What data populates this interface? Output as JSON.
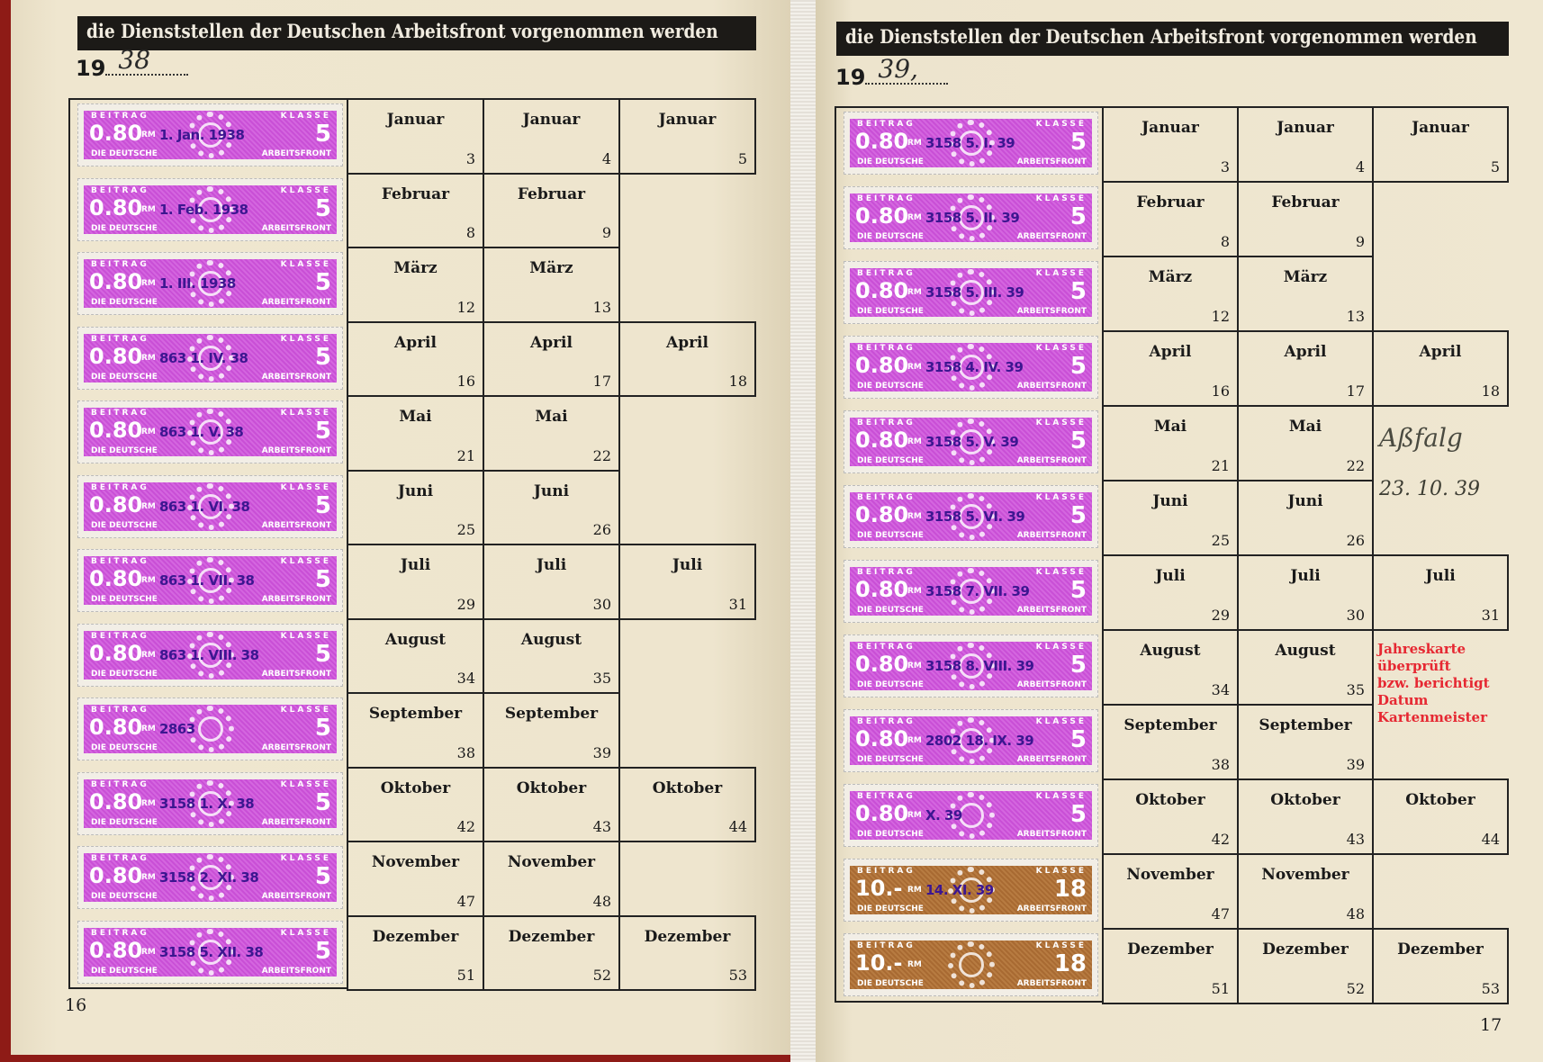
{
  "left_page": {
    "header": "die Dienststellen der Deutschen Arbeitsfront vorgenommen werden",
    "year_prefix": "19",
    "year_handwritten": "38",
    "page_number": "16",
    "stamps": [
      {
        "value": "0.80",
        "klasse": "5",
        "cancel": "1. Jan. 1938",
        "color": "magenta"
      },
      {
        "value": "0.80",
        "klasse": "5",
        "cancel": "1. Feb. 1938",
        "color": "magenta"
      },
      {
        "value": "0.80",
        "klasse": "5",
        "cancel": "1. III. 1938",
        "color": "magenta"
      },
      {
        "value": "0.80",
        "klasse": "5",
        "cancel": "863 1. IV. 38",
        "color": "magenta"
      },
      {
        "value": "0.80",
        "klasse": "5",
        "cancel": "863 1. V. 38",
        "color": "magenta"
      },
      {
        "value": "0.80",
        "klasse": "5",
        "cancel": "863 1. VI. 38",
        "color": "magenta"
      },
      {
        "value": "0.80",
        "klasse": "5",
        "cancel": "863 1. VII. 38",
        "color": "magenta"
      },
      {
        "value": "0.80",
        "klasse": "5",
        "cancel": "863 1. VIII. 38",
        "color": "magenta"
      },
      {
        "value": "0.80",
        "klasse": "5",
        "cancel": "2863",
        "color": "magenta"
      },
      {
        "value": "0.80",
        "klasse": "5",
        "cancel": "3158 1. X. 38",
        "color": "magenta"
      },
      {
        "value": "0.80",
        "klasse": "5",
        "cancel": "3158 2. XI. 38",
        "color": "magenta"
      },
      {
        "value": "0.80",
        "klasse": "5",
        "cancel": "3158 5. XII. 38",
        "color": "magenta"
      }
    ]
  },
  "right_page": {
    "header": "die Dienststellen der Deutschen Arbeitsfront vorgenommen werden",
    "year_prefix": "19",
    "year_handwritten": "39,",
    "page_number": "17",
    "stamps": [
      {
        "value": "0.80",
        "klasse": "5",
        "cancel": "3158 5. I. 39",
        "color": "magenta"
      },
      {
        "value": "0.80",
        "klasse": "5",
        "cancel": "3158 5. II. 39",
        "color": "magenta"
      },
      {
        "value": "0.80",
        "klasse": "5",
        "cancel": "3158 5. III. 39",
        "color": "magenta"
      },
      {
        "value": "0.80",
        "klasse": "5",
        "cancel": "3158 4. IV. 39",
        "color": "magenta"
      },
      {
        "value": "0.80",
        "klasse": "5",
        "cancel": "3158 5. V. 39",
        "color": "magenta"
      },
      {
        "value": "0.80",
        "klasse": "5",
        "cancel": "3158 5. VI. 39",
        "color": "magenta"
      },
      {
        "value": "0.80",
        "klasse": "5",
        "cancel": "3158 7. VII. 39",
        "color": "magenta"
      },
      {
        "value": "0.80",
        "klasse": "5",
        "cancel": "3158 8. VIII. 39",
        "color": "magenta"
      },
      {
        "value": "0.80",
        "klasse": "5",
        "cancel": "2802 18. IX. 39",
        "color": "magenta"
      },
      {
        "value": "0.80",
        "klasse": "5",
        "cancel": "X. 39",
        "color": "magenta"
      },
      {
        "value": "10.-",
        "klasse": "18",
        "cancel": "14. XI. 39",
        "color": "brown"
      },
      {
        "value": "10.-",
        "klasse": "18",
        "cancel": "",
        "color": "brown"
      }
    ],
    "red_stamp": [
      "Jahreskarte überprüft",
      "bzw. berichtigt",
      "Datum",
      "Kartenmeister"
    ],
    "signature": "Aßfalg",
    "handwritten_date": "23. 10. 39"
  },
  "stamp_labels": {
    "top_left": "BEITRAG",
    "top_right": "KLASSE",
    "bottom_left": "DIE DEUTSCHE",
    "bottom_right": "ARBEITSFRONT",
    "currency": "RM"
  },
  "months": [
    {
      "name": "Januar",
      "weeks": [
        "3",
        "4",
        "5"
      ]
    },
    {
      "name": "Februar",
      "weeks": [
        "8",
        "9"
      ]
    },
    {
      "name": "März",
      "weeks": [
        "12",
        "13"
      ]
    },
    {
      "name": "April",
      "weeks": [
        "16",
        "17",
        "18"
      ]
    },
    {
      "name": "Mai",
      "weeks": [
        "21",
        "22"
      ]
    },
    {
      "name": "Juni",
      "weeks": [
        "25",
        "26"
      ]
    },
    {
      "name": "Juli",
      "weeks": [
        "29",
        "30",
        "31"
      ]
    },
    {
      "name": "August",
      "weeks": [
        "34",
        "35"
      ]
    },
    {
      "name": "September",
      "weeks": [
        "38",
        "39"
      ]
    },
    {
      "name": "Oktober",
      "weeks": [
        "42",
        "43",
        "44"
      ]
    },
    {
      "name": "November",
      "weeks": [
        "47",
        "48"
      ]
    },
    {
      "name": "Dezember",
      "weeks": [
        "51",
        "52",
        "53"
      ]
    }
  ],
  "colors": {
    "paper": "#ede4cd",
    "stamp_magenta": "#c94fd6",
    "stamp_brown": "#a86a32",
    "cancel_ink": "#461ea0",
    "red_stamp": "#e62832",
    "cover": "#8e1b16"
  }
}
